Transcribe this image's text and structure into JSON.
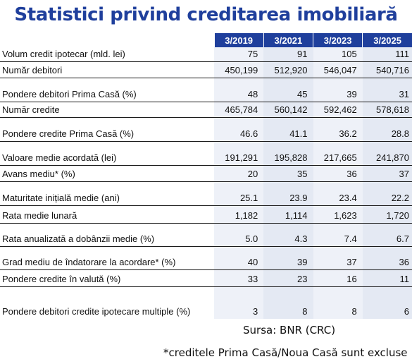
{
  "title": "Statistici privind creditarea imobiliară",
  "table": {
    "headers": [
      "3/2019",
      "3/2021",
      "3/2023",
      "3/2025"
    ],
    "rows": [
      {
        "label": "Volum credit ipotecar (mld. lei)",
        "values": [
          "75",
          "91",
          "105",
          "111"
        ]
      },
      {
        "label": "Număr debitori",
        "values": [
          "450,199",
          "512,920",
          "546,047",
          "540,716"
        ]
      },
      {
        "label": "Pondere debitori Prima Casă (%)",
        "values": [
          "48",
          "45",
          "39",
          "31"
        ]
      },
      {
        "label": "Număr credite",
        "values": [
          "465,784",
          "560,142",
          "592,462",
          "578,618"
        ]
      },
      {
        "label": "Pondere credite Prima Casă (%)",
        "values": [
          "46.6",
          "41.1",
          "36.2",
          "28.8"
        ]
      },
      {
        "label": "Valoare medie acordată (lei)",
        "values": [
          "191,291",
          "195,828",
          "217,665",
          "241,870"
        ]
      },
      {
        "label": "Avans mediu* (%)",
        "values": [
          "20",
          "35",
          "36",
          "37"
        ]
      },
      {
        "label": "Maturitate inițială medie (ani)",
        "values": [
          "25.1",
          "23.9",
          "23.4",
          "22.2"
        ]
      },
      {
        "label": "Rata medie lunară",
        "values": [
          "1,182",
          "1,114",
          "1,623",
          "1,720"
        ]
      },
      {
        "label": "Rata anualizată a dobânzii medie (%)",
        "values": [
          "5.0",
          "4.3",
          "7.4",
          "6.7"
        ]
      },
      {
        "label": "Grad mediu de îndatorare la acordare* (%)",
        "values": [
          "40",
          "39",
          "37",
          "36"
        ]
      },
      {
        "label": "Pondere credite în valută (%)",
        "values": [
          "33",
          "23",
          "16",
          "11"
        ]
      },
      {
        "label": "Pondere debitori credite ipotecare multiple (%)",
        "values": [
          "3",
          "8",
          "8",
          "6"
        ]
      }
    ]
  },
  "source": "Sursa: BNR (CRC)",
  "footnote": "*creditele Prima Casă/Noua Casă sunt excluse",
  "colors": {
    "header_bg": "#1f3f9c",
    "title": "#1f3f9c"
  }
}
